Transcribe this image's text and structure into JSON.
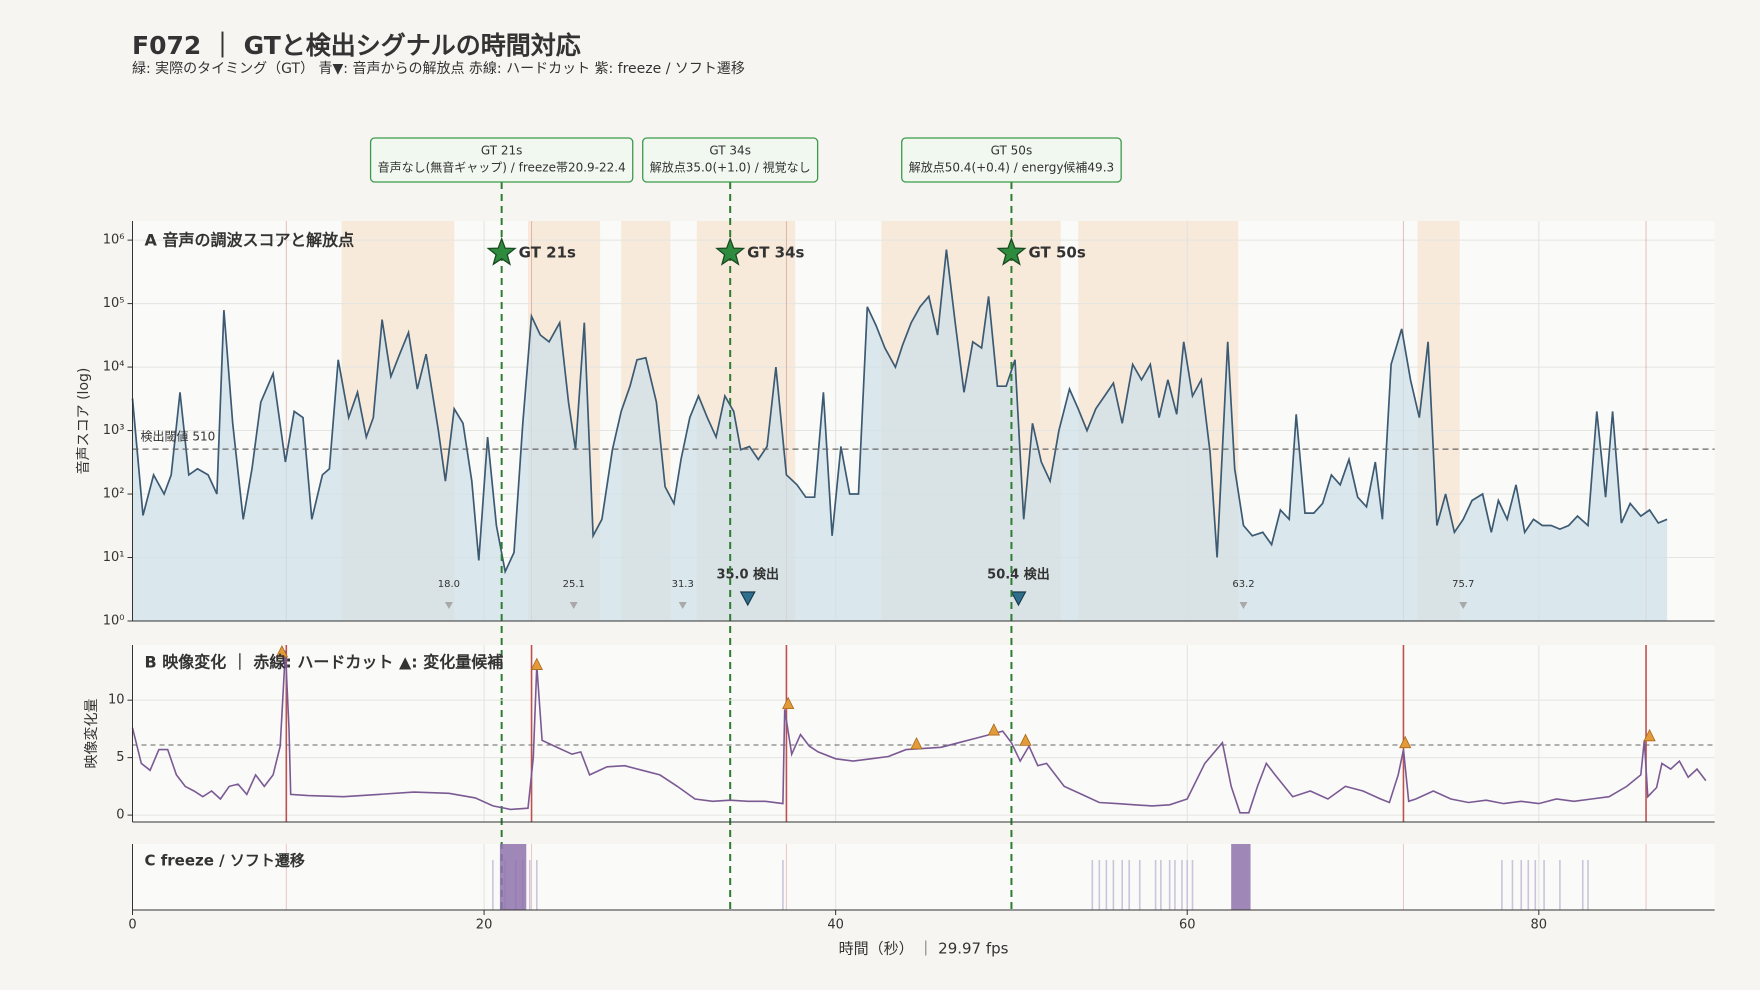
{
  "header": {
    "title": "F072 ｜ GTと検出シグナルの時間対応",
    "subtitle": "緑: 実際のタイミング（GT） 青▼: 音声からの解放点 赤線: ハードカット 紫: freeze / ソフト遷移"
  },
  "chart_data": [
    {
      "type": "area",
      "title": "A 音声の調波スコアと解放点",
      "ylabel": "音声スコア (log)",
      "log_scale": true,
      "xlim": [
        0,
        90
      ],
      "ylim": [
        1,
        2000000
      ],
      "yticks": [
        {
          "value": 1,
          "label": "10⁰"
        },
        {
          "value": 10,
          "label": "10¹"
        },
        {
          "value": 100,
          "label": "10²"
        },
        {
          "value": 1000,
          "label": "10³"
        },
        {
          "value": 10000,
          "label": "10⁴"
        },
        {
          "value": 100000,
          "label": "10⁵"
        },
        {
          "value": 1000000,
          "label": "10⁶"
        }
      ],
      "grid": true,
      "color": "#3d5a73",
      "fill": "#cfe0ea",
      "x": [
        0,
        0.6,
        1.2,
        1.8,
        2.2,
        2.7,
        3.2,
        3.7,
        4.3,
        4.8,
        5.2,
        5.7,
        6.3,
        6.8,
        7.3,
        8.0,
        8.7,
        9.2,
        9.7,
        10.2,
        10.8,
        11.2,
        11.7,
        12.3,
        12.8,
        13.3,
        13.7,
        14.2,
        14.7,
        15.2,
        15.7,
        16.2,
        16.7,
        17.4,
        17.8,
        18.3,
        18.8,
        19.3,
        19.7,
        20.2,
        20.7,
        21.2,
        21.7,
        22.2,
        22.7,
        23.2,
        23.7,
        24.3,
        24.8,
        25.2,
        25.7,
        26.2,
        26.7,
        27.3,
        27.8,
        28.3,
        28.7,
        29.2,
        29.8,
        30.3,
        30.8,
        31.2,
        31.7,
        32.2,
        32.7,
        33.2,
        33.7,
        34.2,
        34.6,
        35.1,
        35.6,
        36.1,
        36.6,
        37.2,
        37.8,
        38.3,
        38.8,
        39.3,
        39.8,
        40.3,
        40.8,
        41.3,
        41.8,
        42.3,
        42.8,
        43.4,
        43.8,
        44.3,
        44.8,
        45.3,
        45.8,
        46.3,
        46.8,
        47.3,
        47.8,
        48.3,
        48.7,
        49.2,
        49.7,
        50.2,
        50.7,
        51.2,
        51.7,
        52.2,
        52.7,
        53.3,
        53.8,
        54.3,
        54.8,
        55.3,
        55.8,
        56.3,
        56.9,
        57.4,
        57.9,
        58.4,
        58.9,
        59.4,
        59.8,
        60.3,
        60.8,
        61.3,
        61.7,
        62.3,
        62.7,
        63.2,
        63.7,
        64.3,
        64.8,
        65.3,
        65.8,
        66.2,
        66.7,
        67.2,
        67.7,
        68.2,
        68.7,
        69.2,
        69.7,
        70.2,
        70.7,
        71.1,
        71.6,
        72.2,
        72.7,
        73.2,
        73.7,
        74.2,
        74.7,
        75.2,
        75.7,
        76.2,
        76.8,
        77.3,
        77.7,
        78.2,
        78.7,
        79.2,
        79.7,
        80.2,
        80.7,
        81.2,
        81.7,
        82.2,
        82.8,
        83.3,
        83.8,
        84.2,
        84.7,
        85.2,
        85.8,
        86.3,
        86.8,
        87.3
      ],
      "values": [
        3200,
        46,
        200,
        100,
        200,
        4000,
        200,
        250,
        200,
        100,
        79000,
        1300,
        40,
        250,
        2800,
        7900,
        320,
        2000,
        1600,
        40,
        200,
        250,
        13000,
        1600,
        4000,
        790,
        1600,
        56000,
        7100,
        16000,
        35000,
        4500,
        16000,
        1000,
        160,
        2200,
        1300,
        160,
        9,
        790,
        32,
        6,
        12,
        1300,
        63000,
        32000,
        25000,
        50000,
        2800,
        500,
        50000,
        22,
        40,
        500,
        2000,
        5000,
        13000,
        14000,
        2800,
        130,
        71,
        350,
        1600,
        3500,
        1600,
        790,
        3500,
        2000,
        500,
        560,
        350,
        560,
        10000,
        200,
        140,
        89,
        89,
        4000,
        22,
        560,
        100,
        100,
        89000,
        45000,
        20000,
        10000,
        22000,
        50000,
        89000,
        130000,
        32000,
        710000,
        50000,
        4000,
        25000,
        20000,
        130000,
        5000,
        5000,
        13000,
        40,
        1300,
        320,
        160,
        1000,
        4500,
        2200,
        1000,
        2200,
        3500,
        5600,
        1300,
        11000,
        6300,
        11000,
        1600,
        6300,
        1800,
        25000,
        3500,
        6300,
        450,
        10,
        25000,
        250,
        32,
        22,
        25,
        16,
        56,
        40,
        1800,
        50,
        50,
        71,
        200,
        140,
        350,
        89,
        63,
        320,
        40,
        11000,
        40000,
        6300,
        1600,
        25000,
        32,
        100,
        25,
        40,
        79,
        100,
        25,
        79,
        40,
        140,
        25,
        40,
        32,
        32,
        28,
        32,
        45,
        32,
        2000,
        89,
        2000,
        35,
        71,
        45,
        56,
        35,
        40
      ],
      "shaded_spans": [
        [
          11.9,
          18.3
        ],
        [
          22.5,
          26.6
        ],
        [
          27.8,
          30.6
        ],
        [
          32.1,
          37.7
        ],
        [
          42.6,
          52.8
        ],
        [
          53.8,
          62.9
        ],
        [
          73.1,
          75.5
        ]
      ],
      "span_color": "#f6e6d2",
      "threshold": 510,
      "threshold_label": "検出閾値 510",
      "gt": [
        {
          "x": 21,
          "star_y": 630000,
          "label": "GT 21s",
          "box_title": "GT 21s",
          "box_note": "音声なし(無音ギャップ) / freeze帯20.9-22.4"
        },
        {
          "x": 34,
          "star_y": 630000,
          "label": "GT 34s",
          "box_title": "GT 34s",
          "box_note": "解放点35.0(+1.0) / 視覚なし"
        },
        {
          "x": 50,
          "star_y": 630000,
          "label": "GT 50s",
          "box_title": "GT 50s",
          "box_note": "解放点50.4(+0.4) / energy候補49.3"
        }
      ],
      "gt_color": "#2e7d32",
      "detections": {
        "values": [
          35.0,
          50.4
        ],
        "value_labels": [
          "35.0 検出",
          "50.4 検出"
        ],
        "color": "#2e6f8e"
      },
      "candidates": {
        "values": [
          18.0,
          25.1,
          31.3,
          63.2,
          75.7
        ],
        "value_labels": [
          "18.0",
          "25.1",
          "31.3",
          "63.2",
          "75.7"
        ],
        "color": "#a9a9a9"
      }
    },
    {
      "type": "line",
      "title": "B 映像変化 ｜ 赤線: ハードカット ▲: 変化量候補",
      "ylabel": "映像変化量",
      "xlim": [
        0,
        90
      ],
      "ylim": [
        -0.6,
        14.8
      ],
      "yticks": [
        0,
        5,
        10
      ],
      "grid": true,
      "color": "#7b5a94",
      "x": [
        0,
        0.5,
        1,
        1.5,
        2,
        2.5,
        3,
        3.5,
        4,
        4.5,
        5,
        5.5,
        6,
        6.5,
        7,
        7.5,
        8,
        8.4,
        8.7,
        8.9,
        9.0,
        10,
        12,
        14,
        16,
        18,
        19.5,
        20.5,
        21.5,
        22.5,
        22.8,
        23.0,
        23.3,
        24,
        25,
        25.5,
        26,
        27,
        28,
        29,
        30,
        31,
        32,
        33,
        34,
        35,
        36,
        37,
        37.1,
        37.5,
        38,
        38.5,
        39,
        40,
        41,
        42,
        43,
        44,
        45,
        46,
        47,
        48,
        49,
        49.5,
        50,
        50.5,
        51,
        51.5,
        52,
        53,
        54,
        55,
        56,
        57,
        58,
        59,
        60,
        61,
        62,
        62.5,
        63,
        63.5,
        64,
        64.5,
        65,
        66,
        67,
        68,
        69,
        70,
        71,
        71.5,
        72,
        72.3,
        72.6,
        73,
        74,
        75,
        76,
        77,
        78,
        79,
        80,
        81,
        82,
        83,
        84,
        85,
        85.8,
        86.0,
        86.2,
        86.7,
        87,
        87.5,
        88,
        88.5,
        89,
        89.5
      ],
      "values": [
        7.6,
        4.5,
        3.9,
        5.7,
        5.7,
        3.5,
        2.5,
        2.1,
        1.6,
        2.1,
        1.4,
        2.5,
        2.7,
        1.8,
        3.5,
        2.5,
        3.5,
        6.0,
        14.3,
        7.5,
        1.8,
        1.7,
        1.6,
        1.8,
        2.0,
        1.9,
        1.5,
        0.8,
        0.5,
        0.6,
        5.0,
        13.0,
        6.5,
        6.0,
        5.3,
        5.5,
        3.5,
        4.2,
        4.3,
        3.9,
        3.5,
        2.5,
        1.4,
        1.2,
        1.3,
        1.2,
        1.2,
        1.0,
        9.2,
        5.3,
        7.0,
        6.0,
        5.5,
        4.9,
        4.7,
        4.9,
        5.1,
        5.7,
        5.8,
        5.9,
        6.3,
        6.7,
        7.1,
        7.3,
        6.3,
        4.7,
        6.0,
        4.3,
        4.5,
        2.5,
        1.8,
        1.1,
        1.0,
        0.9,
        0.8,
        0.9,
        1.4,
        4.5,
        6.3,
        2.5,
        0.2,
        0.2,
        2.5,
        4.5,
        3.5,
        1.6,
        2.1,
        1.4,
        2.5,
        2.1,
        1.4,
        1.1,
        3.5,
        5.7,
        1.2,
        1.4,
        2.1,
        1.4,
        1.1,
        1.3,
        1.0,
        1.2,
        1.0,
        1.4,
        1.2,
        1.4,
        1.6,
        2.5,
        3.5,
        6.5,
        1.6,
        2.4,
        4.5,
        4.0,
        4.7,
        3.3,
        4.0,
        3.0
      ],
      "threshold": 6.1,
      "hard_cuts": [
        8.75,
        22.7,
        37.2,
        72.3,
        86.1
      ],
      "cut_color": "#c0504d",
      "change_candidates": {
        "x": [
          8.5,
          23.0,
          37.3,
          44.6,
          49.0,
          50.8,
          72.4,
          86.3
        ],
        "values": [
          14.2,
          13.1,
          9.7,
          6.2,
          7.4,
          6.5,
          6.3,
          6.9
        ],
        "color": "#e39a3b"
      }
    },
    {
      "type": "events",
      "title": "C freeze / ソフト遷移",
      "xlabel": "時間（秒） ｜ 29.97 fps",
      "xlim": [
        0,
        90
      ],
      "xticks": [
        0,
        20,
        40,
        60,
        80
      ],
      "freeze_spans": [
        [
          20.9,
          22.4
        ],
        [
          62.5,
          63.6
        ]
      ],
      "freeze_color": "#8e72ad",
      "soft_transitions": [
        20.5,
        21.2,
        21.8,
        22.2,
        22.6,
        23.0,
        37.0,
        54.6,
        55.0,
        55.4,
        55.8,
        56.3,
        56.7,
        57.3,
        58.2,
        58.5,
        59.0,
        59.3,
        59.7,
        60.0,
        60.3,
        77.9,
        78.5,
        79.0,
        79.4,
        79.8,
        80.3,
        81.2,
        82.5,
        82.8
      ],
      "soft_color": "#cbc5db"
    }
  ]
}
